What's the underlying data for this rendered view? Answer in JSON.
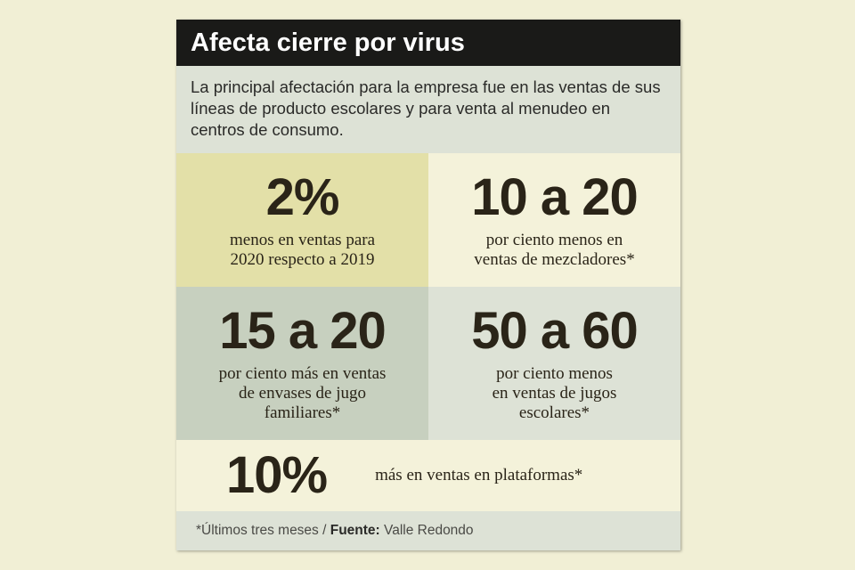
{
  "title": "Afecta cierre por virus",
  "intro": "La principal afectación para la empresa fue en las ventas de sus líneas de producto escolares y para venta al menudeo en centros de consumo.",
  "stats": [
    {
      "value": "2%",
      "line1": "menos en ventas para",
      "line2": "2020 respecto a 2019",
      "line3": ""
    },
    {
      "value": "10 a 20",
      "line1": "por ciento menos en",
      "line2": "ventas de mezcladores*",
      "line3": ""
    },
    {
      "value": "15 a 20",
      "line1": "por ciento más en ventas",
      "line2": "de envases de jugo",
      "line3": "familiares*"
    },
    {
      "value": "50 a 60",
      "line1": "por ciento menos",
      "line2": "en ventas de jugos",
      "line3": "escolares*"
    }
  ],
  "bottom_stat": {
    "value": "10%",
    "text": "más en ventas en plataformas*"
  },
  "footer": {
    "note": "*Últimos tres meses / ",
    "source_label": "Fuente:",
    "source": " Valle Redondo"
  },
  "colors": {
    "title_bg": "#1a1a18",
    "intro_bg": "#dde2d6",
    "cell_yellow": "#e3e0a8",
    "cell_cream": "#f4f2da",
    "cell_sage": "#c7d0bf",
    "text_dark": "#2a2418"
  }
}
